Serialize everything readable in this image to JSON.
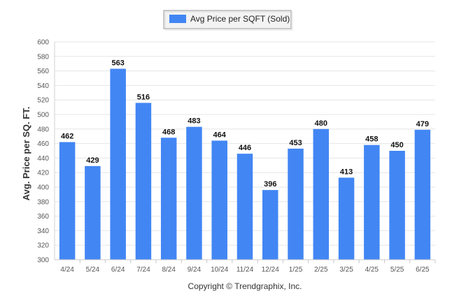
{
  "chart_data": {
    "type": "bar",
    "categories": [
      "4/24",
      "5/24",
      "6/24",
      "7/24",
      "8/24",
      "9/24",
      "10/24",
      "11/24",
      "12/24",
      "1/25",
      "2/25",
      "3/25",
      "4/25",
      "5/25",
      "6/25"
    ],
    "series": [
      {
        "name": "Avg Price per SQFT (Sold)",
        "values": [
          462,
          429,
          563,
          516,
          468,
          483,
          464,
          446,
          396,
          453,
          480,
          413,
          458,
          450,
          479
        ]
      }
    ],
    "ylabel": "Avg. Price per SQ. FT.",
    "xlabel": "",
    "ylim": [
      300,
      600
    ],
    "yticks": [
      300,
      320,
      340,
      360,
      380,
      400,
      420,
      440,
      460,
      480,
      500,
      520,
      540,
      560,
      580,
      600
    ],
    "grid": true,
    "legend_position": "top-center",
    "bar_color": "#4286F4",
    "footer": "Copyright © Trendgraphix, Inc."
  }
}
